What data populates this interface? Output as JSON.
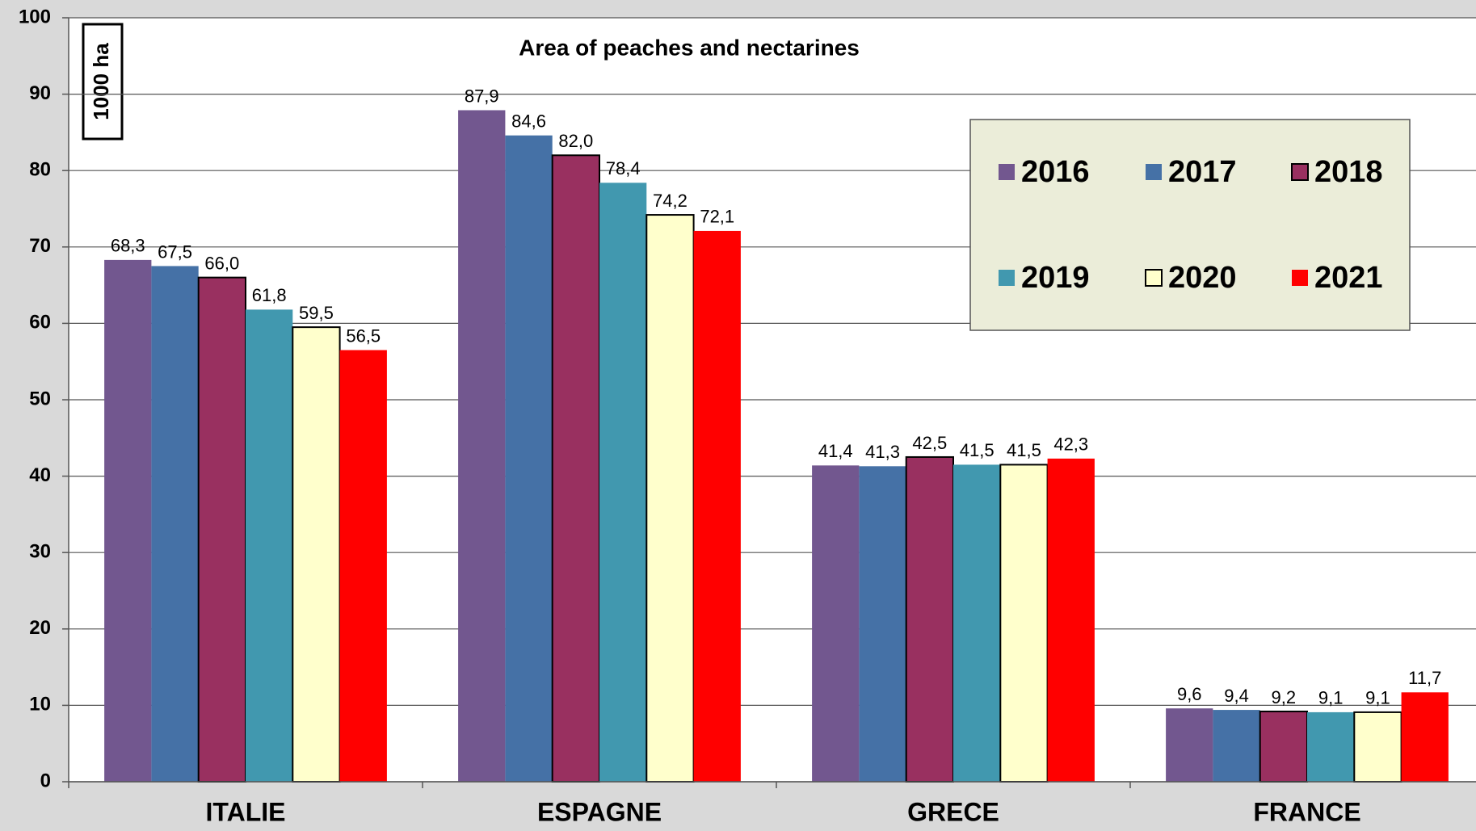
{
  "chart_data": {
    "type": "bar",
    "title": "Area of peaches and nectarines",
    "ylabel": "1000 ha",
    "categories": [
      "ITALIE",
      "ESPAGNE",
      "GRECE",
      "FRANCE"
    ],
    "series": [
      {
        "name": "2016",
        "color": "#72578f",
        "values": [
          68.3,
          87.9,
          41.4,
          9.6
        ],
        "value_labels": [
          "68,3",
          "87,9",
          "41,4",
          "9,6"
        ]
      },
      {
        "name": "2017",
        "color": "#4571a6",
        "values": [
          67.5,
          84.6,
          41.3,
          9.4
        ],
        "value_labels": [
          "67,5",
          "84,6",
          "41,3",
          "9,4"
        ]
      },
      {
        "name": "2018",
        "color": "#993060",
        "edgecolor": "#000000",
        "values": [
          66.0,
          82.0,
          42.5,
          9.2
        ],
        "value_labels": [
          "66,0",
          "82,0",
          "42,5",
          "9,2"
        ]
      },
      {
        "name": "2019",
        "color": "#4198af",
        "values": [
          61.8,
          78.4,
          41.5,
          9.1
        ],
        "value_labels": [
          "61,8",
          "78,4",
          "41,5",
          "9,1"
        ]
      },
      {
        "name": "2020",
        "color": "#ffffcc",
        "edgecolor": "#000000",
        "values": [
          59.5,
          74.2,
          41.5,
          9.1
        ],
        "value_labels": [
          "59,5",
          "74,2",
          "41,5",
          "9,1"
        ]
      },
      {
        "name": "2021",
        "color": "#ff0000",
        "values": [
          56.5,
          72.1,
          42.3,
          11.7
        ],
        "value_labels": [
          "56,5",
          "72,1",
          "42,3",
          "11,7"
        ]
      }
    ],
    "ylim": [
      0,
      100
    ],
    "yticks": [
      0,
      10,
      20,
      30,
      40,
      50,
      60,
      70,
      80,
      90,
      100
    ],
    "grid": true,
    "legend": "upper right"
  }
}
